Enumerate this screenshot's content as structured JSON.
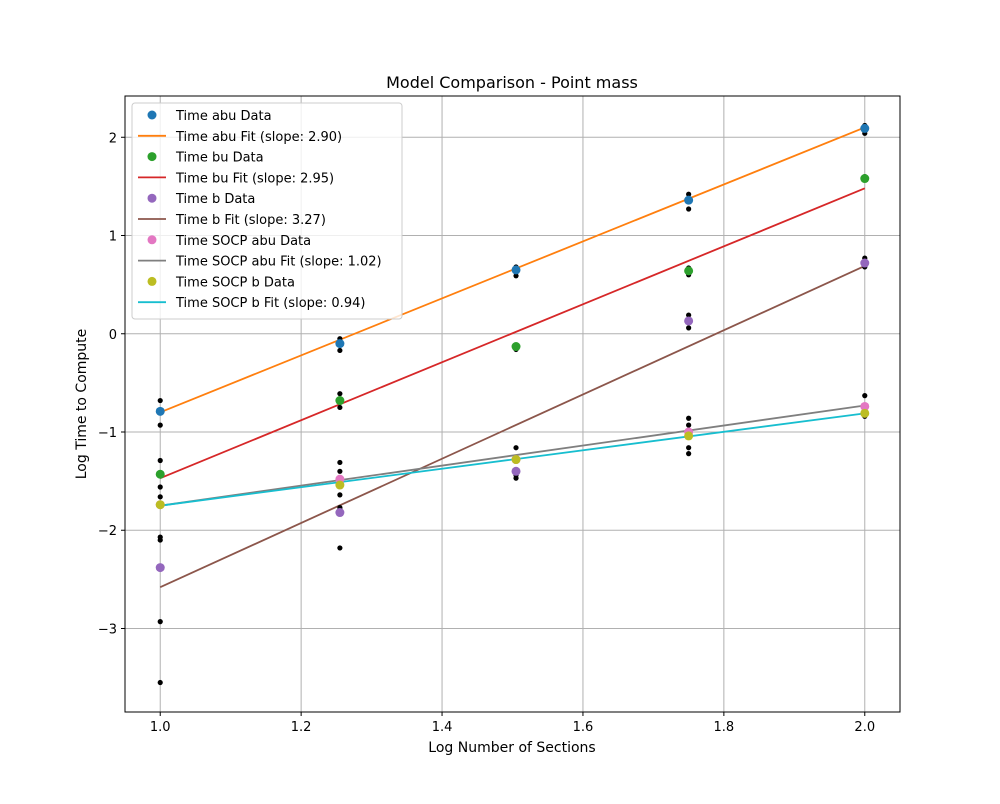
{
  "chart_data": {
    "type": "line",
    "title": "Model Comparison - Point mass",
    "xlabel": "Log Number of Sections",
    "ylabel": "Log Time to Compute",
    "xlim": [
      0.95,
      2.05
    ],
    "ylim": [
      -3.85,
      2.42
    ],
    "xticks": [
      1.0,
      1.2,
      1.4,
      1.6,
      1.8,
      2.0
    ],
    "yticks": [
      -3,
      -2,
      -1,
      0,
      1,
      2
    ],
    "xtick_labels": [
      "1.0",
      "1.2",
      "1.4",
      "1.6",
      "1.8",
      "2.0"
    ],
    "ytick_labels": [
      "−3",
      "−2",
      "−1",
      "0",
      "1",
      "2"
    ],
    "grid": true,
    "legend_position": "top-left",
    "x": [
      1.0,
      1.255,
      1.505,
      1.75,
      2.0
    ],
    "series": [
      {
        "name": "Time abu Data",
        "kind": "markers",
        "color": "#1f77b4",
        "y": [
          -0.79,
          -0.1,
          0.65,
          1.36,
          2.09
        ]
      },
      {
        "name": "Time abu Fit (slope: 2.90)",
        "kind": "line",
        "color": "#ff7f0e",
        "x": [
          1.0,
          2.0
        ],
        "y": [
          -0.8,
          2.1
        ]
      },
      {
        "name": "Time bu Data",
        "kind": "markers",
        "color": "#2ca02c",
        "y": [
          -1.43,
          -0.68,
          -0.13,
          0.64,
          1.58
        ]
      },
      {
        "name": "Time bu Fit (slope: 2.95)",
        "kind": "line",
        "color": "#d62728",
        "x": [
          1.0,
          2.0
        ],
        "y": [
          -1.47,
          1.48
        ]
      },
      {
        "name": "Time b Data",
        "kind": "markers",
        "color": "#9467bd",
        "y": [
          -2.38,
          -1.82,
          -1.4,
          0.13,
          0.72
        ]
      },
      {
        "name": "Time b Fit (slope: 3.27)",
        "kind": "line",
        "color": "#8c564b",
        "x": [
          1.0,
          2.0
        ],
        "y": [
          -2.58,
          0.69
        ]
      },
      {
        "name": "Time SOCP abu Data",
        "kind": "markers",
        "color": "#e377c2",
        "y": [
          -1.74,
          -1.48,
          -1.28,
          -1.0,
          -0.74
        ]
      },
      {
        "name": "Time SOCP abu Fit (slope: 1.02)",
        "kind": "line",
        "color": "#7f7f7f",
        "x": [
          1.0,
          2.0
        ],
        "y": [
          -1.75,
          -0.73
        ]
      },
      {
        "name": "Time SOCP b Data",
        "kind": "markers",
        "color": "#bcbd22",
        "y": [
          -1.74,
          -1.54,
          -1.28,
          -1.04,
          -0.81
        ]
      },
      {
        "name": "Time SOCP b Fit (slope: 0.94)",
        "kind": "line",
        "color": "#17becf",
        "x": [
          1.0,
          2.0
        ],
        "y": [
          -1.75,
          -0.81
        ]
      }
    ],
    "raw_points": {
      "color": "#000000",
      "points": [
        [
          1.0,
          -0.68
        ],
        [
          1.0,
          -0.93
        ],
        [
          1.0,
          -1.29
        ],
        [
          1.0,
          -1.44
        ],
        [
          1.0,
          -1.56
        ],
        [
          1.0,
          -1.66
        ],
        [
          1.0,
          -1.73
        ],
        [
          1.0,
          -2.07
        ],
        [
          1.0,
          -2.1
        ],
        [
          1.0,
          -2.93
        ],
        [
          1.0,
          -3.55
        ],
        [
          1.255,
          -0.05
        ],
        [
          1.255,
          -0.08
        ],
        [
          1.255,
          -0.17
        ],
        [
          1.255,
          -0.61
        ],
        [
          1.255,
          -0.75
        ],
        [
          1.255,
          -1.31
        ],
        [
          1.255,
          -1.4
        ],
        [
          1.255,
          -1.64
        ],
        [
          1.255,
          -1.77
        ],
        [
          1.255,
          -1.79
        ],
        [
          1.255,
          -2.18
        ],
        [
          1.505,
          0.59
        ],
        [
          1.505,
          0.68
        ],
        [
          1.505,
          -0.12
        ],
        [
          1.505,
          -0.16
        ],
        [
          1.505,
          -1.16
        ],
        [
          1.505,
          -1.26
        ],
        [
          1.505,
          -1.44
        ],
        [
          1.505,
          -1.47
        ],
        [
          1.75,
          1.42
        ],
        [
          1.75,
          1.27
        ],
        [
          1.75,
          0.67
        ],
        [
          1.75,
          0.6
        ],
        [
          1.75,
          0.19
        ],
        [
          1.75,
          0.06
        ],
        [
          1.75,
          -0.86
        ],
        [
          1.75,
          -0.93
        ],
        [
          1.75,
          -1.16
        ],
        [
          1.75,
          -1.22
        ],
        [
          2.0,
          2.12
        ],
        [
          2.0,
          2.04
        ],
        [
          2.0,
          1.6
        ],
        [
          2.0,
          0.77
        ],
        [
          2.0,
          0.68
        ],
        [
          2.0,
          -0.63
        ],
        [
          2.0,
          -0.79
        ],
        [
          2.0,
          -0.84
        ]
      ]
    }
  }
}
